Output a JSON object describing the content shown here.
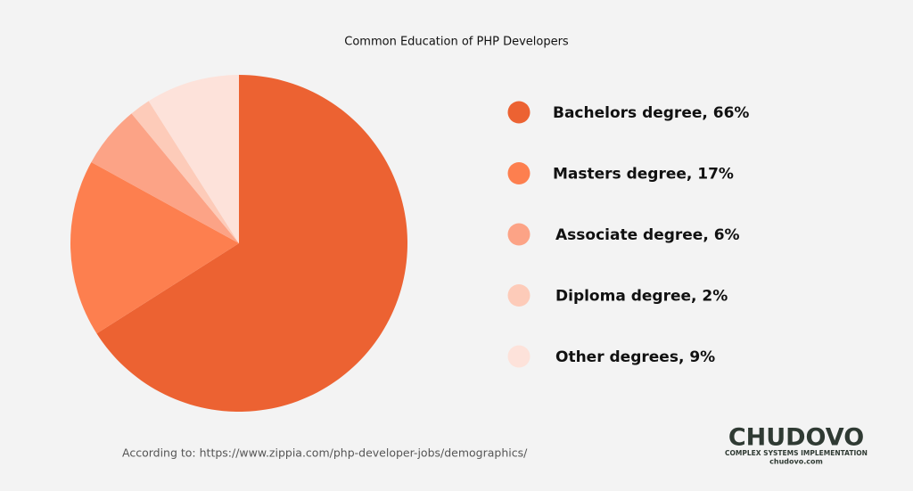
{
  "chart_data": {
    "type": "pie",
    "title": "Common Education of PHP Developers",
    "categories": [
      "Bachelors degree, 66%",
      "Masters degree, 17%",
      "Associate degree, 6%",
      "Diploma degree, 2%",
      "Other degrees, 9%"
    ],
    "values": [
      66,
      17,
      6,
      2,
      9
    ],
    "colors": [
      "#ec6232",
      "#fd7f4f",
      "#fca386",
      "#fdcbb9",
      "#fde2da"
    ],
    "legend": "right"
  },
  "source": "According to: https://www.zippia.com/php-developer-jobs/demographics/",
  "logo": {
    "name": "CHUDOVO",
    "tagline": "COMPLEX SYSTEMS IMPLEMENTATION",
    "site": "chudovo.com"
  }
}
